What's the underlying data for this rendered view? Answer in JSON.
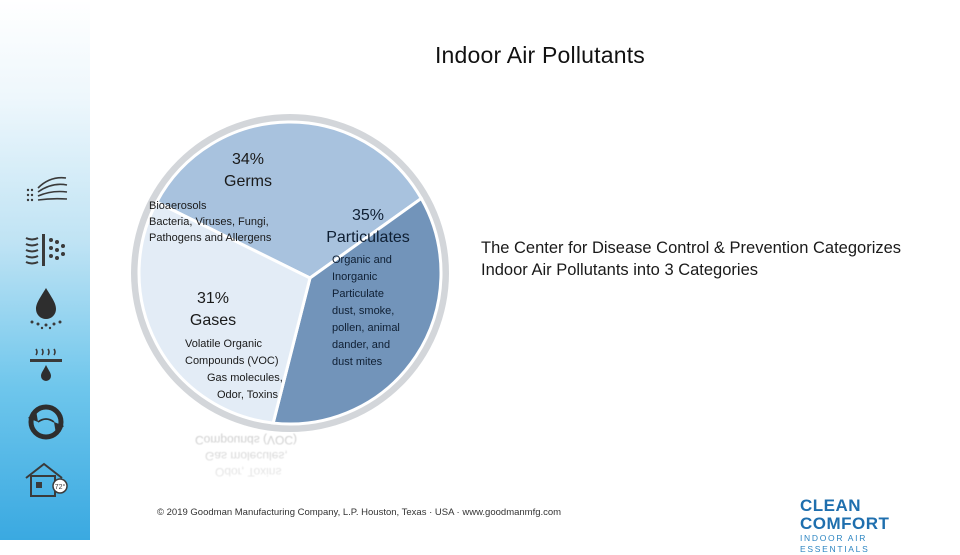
{
  "title": "Indoor Air Pollutants",
  "description": "The Center for Disease Control & Prevention Categorizes Indoor Air Pollutants into 3 Categories",
  "footer": "© 2019 Goodman Manufacturing Company, L.P. Houston, Texas · USA · www.goodmanmfg.com",
  "logo": {
    "main": "CLEAN COMFORT",
    "sub": "INDOOR AIR ESSENTIALS"
  },
  "sidebar_icons": [
    "airflow-icon",
    "filter-icon",
    "humidity-drop-icon",
    "dehumidifier-icon",
    "ventilation-cycle-icon",
    "home-thermostat-icon"
  ],
  "thermostat_label": "72°",
  "reflection_lines": [
    "Odor, Toxins",
    "Gas molecules,",
    "Compounds (VOC)"
  ],
  "colors": {
    "germs": "#a8c2de",
    "particulates": "#7294ba",
    "gases": "#e3ecf6",
    "rim": "#d3d6da"
  },
  "chart_data": {
    "type": "pie",
    "slices": [
      {
        "pct_label": "34%",
        "value": 34,
        "name": "Germs",
        "details": [
          "Bioaerosols",
          "Bacteria, Viruses, Fungi,",
          "Pathogens and Allergens"
        ]
      },
      {
        "pct_label": "35%",
        "value": 35,
        "name": "Particulates",
        "details": [
          "Organic and",
          "Inorganic",
          "Particulate",
          "dust, smoke,",
          "pollen, animal",
          "dander, and",
          "dust mites"
        ]
      },
      {
        "pct_label": "31%",
        "value": 31,
        "name": "Gases",
        "details": [
          "Volatile Organic",
          "Compounds (VOC)",
          "Gas molecules,",
          "Odor, Toxins"
        ]
      }
    ]
  }
}
